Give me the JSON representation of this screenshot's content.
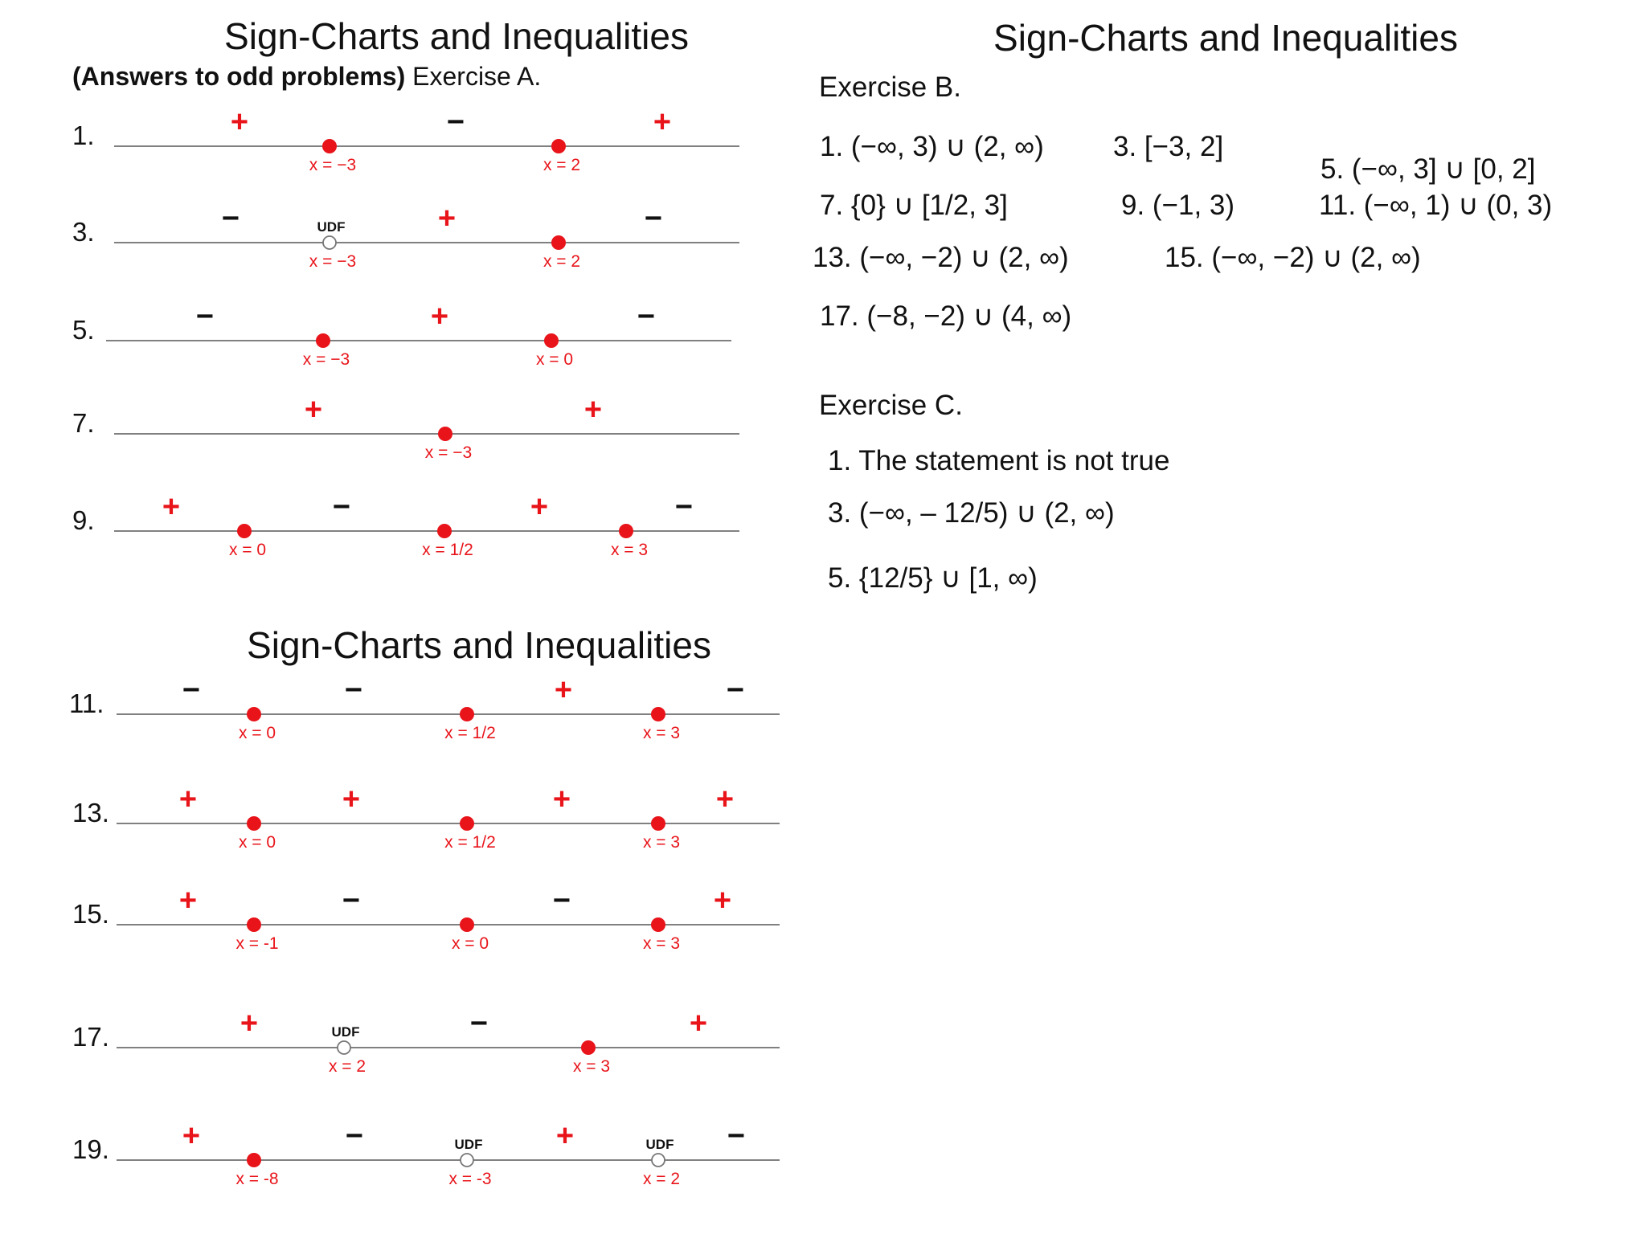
{
  "colors": {
    "mark": "#e8141a",
    "line": "#808080",
    "text": "#111111"
  },
  "left_top": {
    "title": "Sign-Charts and Inequalities",
    "subtitle_bold": "(Answers to odd problems)",
    "subtitle_rest": " Exercise A."
  },
  "left_bottom": {
    "title": "Sign-Charts and Inequalities"
  },
  "right": {
    "title": "Sign-Charts and Inequalities",
    "exercise_b": {
      "heading": "Exercise B.",
      "answers": [
        "1. (−∞, 3) ∪ (2, ∞)",
        "3. [−3, 2]",
        "5. (−∞, 3] ∪ [0, 2]",
        "7. {0} ∪ [1/2, 3]",
        "9. (−1, 3)",
        "11. (−∞, 1) ∪ (0, 3)",
        "13. (−∞, −2) ∪ (2, ∞)",
        "15. (−∞, −2) ∪ (2, ∞)",
        "17. (−8, −2) ∪ (4, ∞)"
      ]
    },
    "exercise_c": {
      "heading": "Exercise C.",
      "answers": [
        "1. The statement is not true",
        "3. (−∞, – 12/5) ∪ (2, ∞)",
        "5. {12/5} ∪ [1, ∞)"
      ]
    }
  },
  "sign_charts": [
    {
      "number": "1.",
      "points": [
        {
          "label": "x = −3",
          "type": "closed"
        },
        {
          "label": "x = 2",
          "type": "closed"
        }
      ],
      "signs": [
        "+",
        "−",
        "+"
      ]
    },
    {
      "number": "3.",
      "points": [
        {
          "label": "x = −3",
          "type": "open",
          "note": "UDF"
        },
        {
          "label": "x = 2",
          "type": "closed"
        }
      ],
      "signs": [
        "−",
        "+",
        "−"
      ]
    },
    {
      "number": "5.",
      "points": [
        {
          "label": "x = −3",
          "type": "closed"
        },
        {
          "label": "x = 0",
          "type": "closed"
        }
      ],
      "signs": [
        "−",
        "+",
        "−"
      ]
    },
    {
      "number": "7.",
      "points": [
        {
          "label": "x = −3",
          "type": "closed"
        }
      ],
      "signs": [
        "+",
        "+"
      ]
    },
    {
      "number": "9.",
      "points": [
        {
          "label": "x = 0",
          "type": "closed"
        },
        {
          "label": "x = 1/2",
          "type": "closed"
        },
        {
          "label": "x = 3",
          "type": "closed"
        }
      ],
      "signs": [
        "+",
        "−",
        "+",
        "−"
      ]
    },
    {
      "number": "11.",
      "points": [
        {
          "label": "x = 0",
          "type": "closed"
        },
        {
          "label": "x = 1/2",
          "type": "closed"
        },
        {
          "label": "x = 3",
          "type": "closed"
        }
      ],
      "signs": [
        "−",
        "−",
        "+",
        "−"
      ]
    },
    {
      "number": "13.",
      "points": [
        {
          "label": "x = 0",
          "type": "closed"
        },
        {
          "label": "x = 1/2",
          "type": "closed"
        },
        {
          "label": "x = 3",
          "type": "closed"
        }
      ],
      "signs": [
        "+",
        "+",
        "+",
        "+"
      ]
    },
    {
      "number": "15.",
      "points": [
        {
          "label": "x = -1",
          "type": "closed"
        },
        {
          "label": "x = 0",
          "type": "closed"
        },
        {
          "label": "x = 3",
          "type": "closed"
        }
      ],
      "signs": [
        "+",
        "−",
        "−",
        "+"
      ]
    },
    {
      "number": "17.",
      "points": [
        {
          "label": "x = 2",
          "type": "open",
          "note": "UDF"
        },
        {
          "label": "x = 3",
          "type": "closed"
        }
      ],
      "signs": [
        "+",
        "−",
        "+"
      ]
    },
    {
      "number": "19.",
      "points": [
        {
          "label": "x = -8",
          "type": "closed"
        },
        {
          "label": "x = -3",
          "type": "open",
          "note": "UDF"
        },
        {
          "label": "x = 2",
          "type": "open",
          "note": "UDF"
        }
      ],
      "signs": [
        "+",
        "−",
        "+",
        "−"
      ]
    }
  ]
}
